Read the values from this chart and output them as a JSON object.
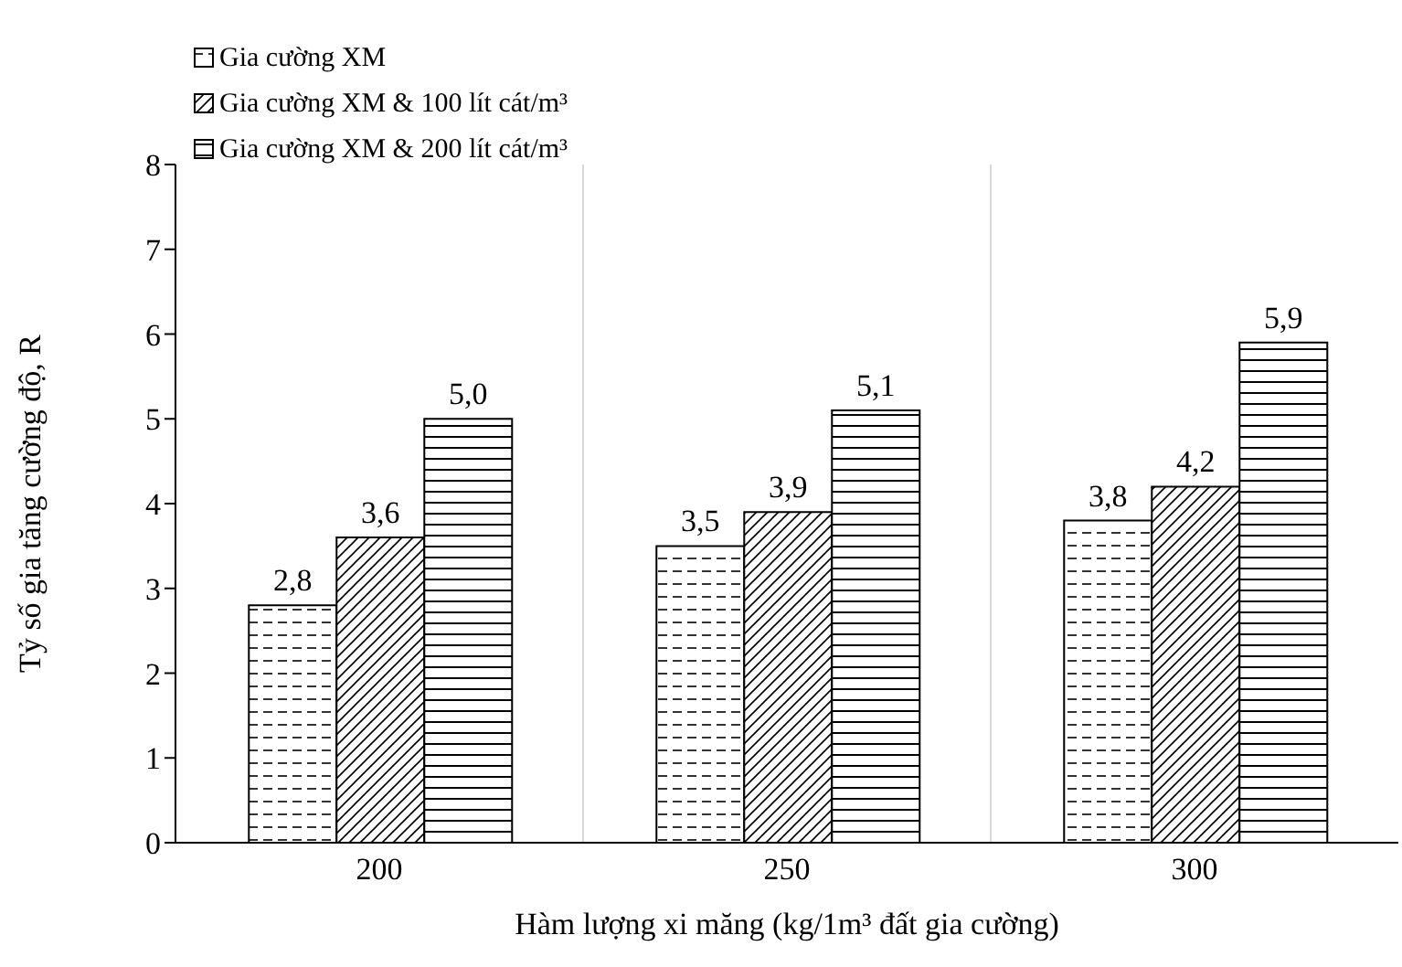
{
  "chart_data": {
    "type": "bar",
    "xlabel": "Hàm lượng xi măng (kg/1m³ đất gia cường)",
    "ylabel": "Tỷ số gia tăng cường độ, R",
    "categories": [
      "200",
      "250",
      "300"
    ],
    "series": [
      {
        "name": "Gia cường XM",
        "color": "#000000",
        "values": [
          2.8,
          3.5,
          3.8
        ],
        "value_labels": [
          "2,8",
          "3,5",
          "3,8"
        ]
      },
      {
        "name": "Gia cường XM & 100 lít cát/m³",
        "color": "#000000",
        "values": [
          3.6,
          3.9,
          4.2
        ],
        "value_labels": [
          "3,6",
          "3,9",
          "4,2"
        ]
      },
      {
        "name": "Gia cường XM & 200 lít cát/m³",
        "color": "#000000",
        "values": [
          5.0,
          5.1,
          5.9
        ],
        "value_labels": [
          "5,0",
          "5,1",
          "5,9"
        ]
      }
    ],
    "ylim": [
      0,
      8
    ],
    "yticks": [
      0,
      1,
      2,
      3,
      4,
      5,
      6,
      7,
      8
    ],
    "grid": "x",
    "legend": "top left"
  }
}
